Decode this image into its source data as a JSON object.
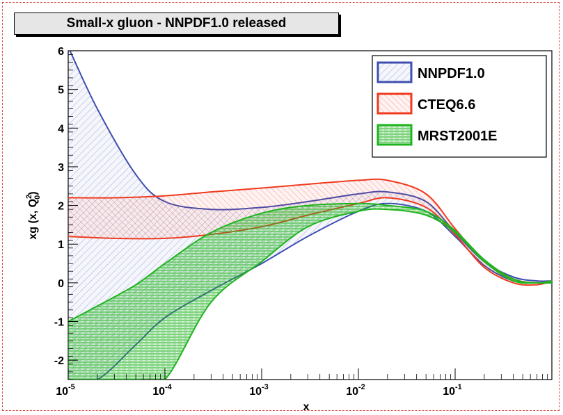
{
  "chart_data": {
    "type": "area",
    "title": "Small-x gluon - NNPDF1.0 released",
    "xlabel": "x",
    "ylabel_main": "xg (x, Q",
    "ylabel_sup": "2",
    "ylabel_sub": "0",
    "ylabel_close": ")",
    "xscale": "log",
    "xlim": [
      1e-05,
      1
    ],
    "ylim": [
      -2.5,
      6
    ],
    "x_ticks": [
      {
        "value": 1e-05,
        "base": "10",
        "exp": "-5"
      },
      {
        "value": 0.0001,
        "base": "10",
        "exp": "-4"
      },
      {
        "value": 0.001,
        "base": "10",
        "exp": "-3"
      },
      {
        "value": 0.01,
        "base": "10",
        "exp": "-2"
      },
      {
        "value": 0.1,
        "base": "10",
        "exp": "-1"
      }
    ],
    "y_ticks": [
      "6",
      "5",
      "4",
      "3",
      "2",
      "1",
      "0",
      "-1",
      "-2"
    ],
    "legend_position": "top-right",
    "colors": {
      "nnpdf": "#3f4fb0",
      "cteq": "#f03a1e",
      "mrst": "#1fb41f"
    },
    "series": [
      {
        "name": "NNPDF1.0",
        "style": "diagonal-hatch",
        "x": [
          1e-05,
          2e-05,
          5e-05,
          0.0001,
          0.0003,
          0.001,
          0.003,
          0.01,
          0.02,
          0.05,
          0.1,
          0.2,
          0.4,
          0.7,
          1.0
        ],
        "upper": [
          6.1,
          4.5,
          2.8,
          2.1,
          1.9,
          1.95,
          2.1,
          2.3,
          2.35,
          2.1,
          1.3,
          0.55,
          0.15,
          0.05,
          0.05
        ],
        "lower": [
          -2.5,
          -2.5,
          -1.6,
          -0.9,
          -0.2,
          0.5,
          1.2,
          1.85,
          2.05,
          1.85,
          1.2,
          0.45,
          0.05,
          0.0,
          0.0
        ]
      },
      {
        "name": "CTEQ6.6",
        "style": "diagonal-hatch",
        "x": [
          1e-05,
          3e-05,
          0.0001,
          0.0003,
          0.001,
          0.003,
          0.01,
          0.02,
          0.05,
          0.1,
          0.2,
          0.4,
          0.7,
          1.0
        ],
        "upper": [
          2.2,
          2.2,
          2.25,
          2.35,
          2.45,
          2.55,
          2.65,
          2.65,
          2.3,
          1.4,
          0.55,
          0.1,
          0.0,
          0.05
        ],
        "lower": [
          1.2,
          1.15,
          1.15,
          1.25,
          1.45,
          1.75,
          2.05,
          2.2,
          1.95,
          1.25,
          0.4,
          0.0,
          -0.05,
          0.05
        ]
      },
      {
        "name": "MRST2001E",
        "style": "horizontal-hatch",
        "x": [
          1e-05,
          2e-05,
          5e-05,
          0.0001,
          0.0003,
          0.001,
          0.003,
          0.01,
          0.02,
          0.05,
          0.1,
          0.2,
          0.4,
          0.7,
          1.0
        ],
        "upper": [
          -1.0,
          -0.6,
          -0.05,
          0.5,
          1.3,
          1.8,
          2.0,
          2.05,
          2.0,
          1.85,
          1.35,
          0.6,
          0.1,
          0.0,
          0.05
        ],
        "lower": [
          -2.5,
          -2.5,
          -2.5,
          -2.5,
          -0.5,
          0.55,
          1.45,
          1.85,
          1.9,
          1.75,
          1.3,
          0.55,
          0.05,
          0.0,
          0.0
        ]
      }
    ]
  }
}
